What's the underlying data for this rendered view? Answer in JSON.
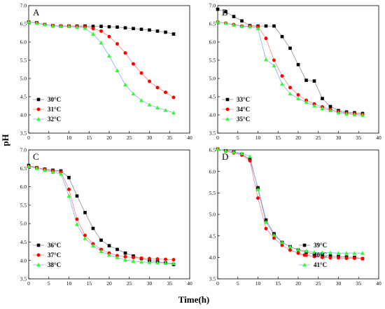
{
  "figure": {
    "ylabel": "pH",
    "xlabel": "Time(h)"
  },
  "colors": {
    "series": [
      "#000000",
      "#ff0000",
      "#2bff2b"
    ],
    "lines": [
      "#8c8c8c",
      "#ff8080",
      "#80b0ff"
    ]
  },
  "chart_data": [
    {
      "type": "line",
      "panel_label": "A",
      "xlim": [
        0,
        40
      ],
      "ylim": [
        3.5,
        7.0
      ],
      "xticks": [
        "0",
        "5",
        "10",
        "15",
        "20",
        "25",
        "30",
        "35",
        "40"
      ],
      "yticks": [
        "3.5",
        "4.0",
        "4.5",
        "5.0",
        "5.5",
        "6.0",
        "6.5",
        "7.0"
      ],
      "x": [
        0,
        2,
        4,
        6,
        8,
        10,
        12,
        14,
        16,
        18,
        20,
        22,
        24,
        26,
        28,
        30,
        32,
        34,
        36
      ],
      "legend_position": "bottom-left",
      "series": [
        {
          "name": "30°C",
          "values": [
            6.55,
            6.53,
            6.48,
            6.45,
            6.44,
            6.44,
            6.44,
            6.44,
            6.43,
            6.43,
            6.42,
            6.41,
            6.39,
            6.37,
            6.35,
            6.33,
            6.3,
            6.27,
            6.22
          ]
        },
        {
          "name": "31°C",
          "values": [
            6.55,
            6.52,
            6.48,
            6.45,
            6.44,
            6.44,
            6.43,
            6.42,
            6.37,
            6.3,
            6.15,
            5.95,
            5.7,
            5.4,
            5.15,
            4.92,
            4.75,
            4.62,
            4.48
          ]
        },
        {
          "name": "32°C",
          "values": [
            6.55,
            6.52,
            6.48,
            6.44,
            6.43,
            6.43,
            6.41,
            6.38,
            6.22,
            5.98,
            5.62,
            5.22,
            4.83,
            4.58,
            4.4,
            4.28,
            4.2,
            4.13,
            4.06
          ]
        }
      ]
    },
    {
      "type": "line",
      "panel_label": "B",
      "xlim": [
        0,
        40
      ],
      "ylim": [
        3.5,
        7.0
      ],
      "xticks": [
        "0",
        "5",
        "10",
        "15",
        "20",
        "25",
        "30",
        "35",
        "40"
      ],
      "yticks": [
        "3.5",
        "4.0",
        "4.5",
        "5.0",
        "5.5",
        "6.0",
        "6.5",
        "7.0"
      ],
      "x": [
        0,
        2,
        4,
        6,
        8,
        10,
        12,
        14,
        16,
        18,
        20,
        22,
        24,
        26,
        28,
        30,
        32,
        34,
        36
      ],
      "legend_position": "bottom-left",
      "series": [
        {
          "name": "33°C",
          "values": [
            6.9,
            6.83,
            6.7,
            6.58,
            6.45,
            6.44,
            6.44,
            6.44,
            6.15,
            5.83,
            5.38,
            4.95,
            4.93,
            4.45,
            4.23,
            4.12,
            4.08,
            4.06,
            4.04
          ]
        },
        {
          "name": "34°C",
          "values": [
            6.55,
            6.52,
            6.48,
            6.44,
            6.43,
            6.42,
            6.1,
            5.5,
            5.07,
            4.75,
            4.55,
            4.4,
            4.3,
            4.22,
            4.15,
            4.09,
            4.05,
            4.03,
            4.01
          ]
        },
        {
          "name": "35°C",
          "values": [
            6.55,
            6.52,
            6.47,
            6.43,
            6.42,
            6.37,
            5.52,
            5.35,
            4.85,
            4.58,
            4.45,
            4.35,
            4.25,
            4.18,
            4.12,
            4.06,
            4.03,
            4.01,
            3.99
          ]
        }
      ]
    },
    {
      "type": "line",
      "panel_label": "C",
      "xlim": [
        0,
        40
      ],
      "ylim": [
        3.5,
        7.0
      ],
      "xticks": [
        "0",
        "5",
        "10",
        "15",
        "20",
        "25",
        "30",
        "35",
        "40"
      ],
      "yticks": [
        "3.5",
        "4.0",
        "4.5",
        "5.0",
        "5.5",
        "6.0",
        "6.5",
        "7.0"
      ],
      "x": [
        0,
        2,
        4,
        6,
        8,
        10,
        12,
        14,
        16,
        18,
        20,
        22,
        24,
        26,
        28,
        30,
        32,
        34,
        36
      ],
      "legend_position": "bottom-left",
      "series": [
        {
          "name": "36°C",
          "values": [
            6.58,
            6.52,
            6.48,
            6.45,
            6.43,
            6.25,
            5.75,
            5.3,
            4.87,
            4.55,
            4.4,
            4.3,
            4.2,
            4.12,
            4.05,
            4.0,
            3.97,
            3.93,
            3.89
          ]
        },
        {
          "name": "37°C",
          "values": [
            6.55,
            6.52,
            6.47,
            6.43,
            6.4,
            5.93,
            5.12,
            4.68,
            4.45,
            4.3,
            4.2,
            4.13,
            4.1,
            4.08,
            4.06,
            4.05,
            4.04,
            4.03,
            4.02
          ]
        },
        {
          "name": "38°C",
          "values": [
            6.55,
            6.5,
            6.45,
            6.4,
            6.35,
            5.75,
            4.98,
            4.6,
            4.4,
            4.25,
            4.15,
            4.08,
            4.02,
            3.98,
            3.96,
            3.95,
            3.94,
            3.93,
            3.92
          ]
        }
      ]
    },
    {
      "type": "line",
      "panel_label": "D",
      "xlim": [
        0,
        40
      ],
      "ylim": [
        3.5,
        6.5
      ],
      "xticks": [
        "0",
        "5",
        "10",
        "15",
        "20",
        "25",
        "30",
        "35",
        "40"
      ],
      "yticks": [
        "3.5",
        "4.0",
        "4.5",
        "5.0",
        "5.5",
        "6.0",
        "6.5"
      ],
      "x": [
        0,
        2,
        4,
        6,
        8,
        10,
        12,
        14,
        16,
        18,
        20,
        22,
        24,
        26,
        28,
        30,
        32,
        34,
        36
      ],
      "legend_position": "bottom-right",
      "series": [
        {
          "name": "39°C",
          "values": [
            6.52,
            6.48,
            6.45,
            6.4,
            6.28,
            5.62,
            4.87,
            4.55,
            4.35,
            4.25,
            4.17,
            4.12,
            4.08,
            4.05,
            4.03,
            4.02,
            4.01,
            4.0,
            3.97
          ]
        },
        {
          "name": "40°C",
          "values": [
            6.52,
            6.47,
            6.43,
            6.38,
            6.25,
            5.38,
            4.67,
            4.45,
            4.28,
            4.17,
            4.1,
            4.05,
            4.02,
            4.0,
            3.99,
            3.99,
            3.98,
            3.98,
            3.97
          ]
        },
        {
          "name": "41°C",
          "values": [
            6.52,
            6.48,
            6.45,
            6.42,
            6.35,
            5.58,
            4.82,
            4.52,
            4.35,
            4.25,
            4.18,
            4.15,
            4.12,
            4.11,
            4.11,
            4.1,
            4.1,
            4.1,
            4.1
          ]
        }
      ]
    }
  ]
}
